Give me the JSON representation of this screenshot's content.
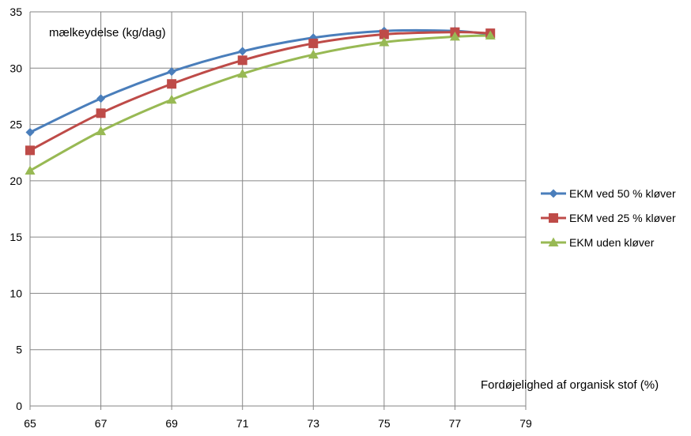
{
  "chart_data": {
    "type": "line",
    "ylabel": "mælkeydelse  (kg/dag)",
    "xlabel": "Fordøjelighed  af organisk stof (%)",
    "xlim": [
      65,
      79
    ],
    "ylim": [
      0,
      35
    ],
    "x_ticks": [
      65,
      67,
      69,
      71,
      73,
      75,
      77,
      79
    ],
    "y_ticks": [
      0,
      5,
      10,
      15,
      20,
      25,
      30,
      35
    ],
    "grid": true,
    "legend_position": "right",
    "series": [
      {
        "name": "EKM ved 50 % kløver",
        "color": "#4a7ebb",
        "marker": "diamond",
        "x": [
          65,
          67,
          69,
          71,
          73,
          75,
          77,
          78
        ],
        "y": [
          24.3,
          27.3,
          29.7,
          31.5,
          32.7,
          33.3,
          33.3,
          33.0
        ]
      },
      {
        "name": "EKM ved 25 % kløver",
        "color": "#be4b48",
        "marker": "square",
        "x": [
          65,
          67,
          69,
          71,
          73,
          75,
          77,
          78
        ],
        "y": [
          22.7,
          26.0,
          28.6,
          30.7,
          32.2,
          33.0,
          33.2,
          33.1
        ]
      },
      {
        "name": "EKM uden kløver",
        "color": "#98b954",
        "marker": "triangle",
        "x": [
          65,
          67,
          69,
          71,
          73,
          75,
          77,
          78
        ],
        "y": [
          20.9,
          24.4,
          27.2,
          29.5,
          31.2,
          32.3,
          32.8,
          32.9
        ]
      }
    ]
  }
}
